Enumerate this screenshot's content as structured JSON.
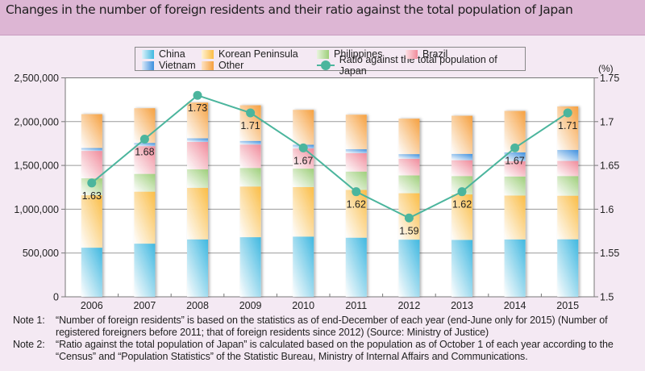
{
  "header": {
    "title": "Changes in the number of foreign residents and their ratio against the total population of Japan"
  },
  "legend": {
    "items": [
      {
        "label": "China",
        "key": "china"
      },
      {
        "label": "Vietnam",
        "key": "vietnam"
      },
      {
        "label": "Korean Peninsula",
        "key": "korea"
      },
      {
        "label": "Other",
        "key": "other"
      },
      {
        "label": "Philippines",
        "key": "philippines"
      },
      {
        "label": "Ratio against the total population of Japan",
        "key": "ratio"
      },
      {
        "label": "Brazil",
        "key": "brazil"
      }
    ]
  },
  "colors": {
    "china": "#3fb8e0",
    "korea": "#fbbd45",
    "philippines": "#9ecf7a",
    "brazil": "#f08b9b",
    "vietnam": "#3c8fde",
    "other": "#f6a03e",
    "ratio": "#4bb59d",
    "background": "#f4e9f3",
    "title_bar": "#ddb6d4"
  },
  "chart_data": {
    "type": "bar",
    "stacked": true,
    "title": "Changes in the number of foreign residents and their ratio against the total population of Japan",
    "categories": [
      "2006",
      "2007",
      "2008",
      "2009",
      "2010",
      "2011",
      "2012",
      "2013",
      "2014",
      "2015"
    ],
    "series": [
      {
        "name": "China",
        "key": "china",
        "values": [
          560741,
          606889,
          655377,
          680518,
          687156,
          674879,
          652595,
          649078,
          654777,
          656403
        ]
      },
      {
        "name": "Korean Peninsula",
        "key": "korea",
        "values": [
          598687,
          593489,
          589239,
          578495,
          565989,
          545401,
          530048,
          519740,
          501230,
          497707
        ]
      },
      {
        "name": "Philippines",
        "key": "philippines",
        "values": [
          193488,
          202592,
          210617,
          211716,
          210181,
          209376,
          202985,
          209183,
          217585,
          224048
        ]
      },
      {
        "name": "Brazil",
        "key": "brazil",
        "values": [
          312979,
          316967,
          312582,
          267456,
          230552,
          210032,
          190609,
          181317,
          175410,
          173038
        ]
      },
      {
        "name": "Vietnam",
        "key": "vietnam",
        "values": [
          32485,
          36860,
          41136,
          41000,
          41781,
          44690,
          52367,
          72256,
          99865,
          125760
        ]
      },
      {
        "name": "Other",
        "key": "other",
        "values": [
          386539,
          396172,
          408007,
          406999,
          398462,
          394236,
          405052,
          434992,
          472966,
          495936
        ]
      }
    ],
    "line_series": {
      "name": "Ratio against the total population of Japan",
      "axis": "right",
      "values": [
        1.63,
        1.68,
        1.73,
        1.71,
        1.67,
        1.62,
        1.59,
        1.62,
        1.67,
        1.71
      ],
      "labels": [
        "1.63",
        "1.68",
        "1.73",
        "1.71",
        "1.67",
        "1.62",
        "1.59",
        "1.62",
        "1.67",
        "1.71"
      ]
    },
    "y_left": {
      "label": "",
      "ylim": [
        0,
        2500000
      ],
      "ticks": [
        0,
        500000,
        1000000,
        1500000,
        2000000,
        2500000
      ],
      "tick_labels": [
        "0",
        "500,000",
        "1,000,000",
        "1,500,000",
        "2,000,000",
        "2,500,000"
      ]
    },
    "y_right": {
      "label": "(%)",
      "ylim": [
        1.5,
        1.75
      ],
      "ticks": [
        1.5,
        1.55,
        1.6,
        1.65,
        1.7,
        1.75
      ],
      "tick_labels": [
        "1.5",
        "1.55",
        "1.6",
        "1.65",
        "1.7",
        "1.75"
      ]
    },
    "grid": true,
    "legend_position": "top-center"
  },
  "notes": [
    {
      "label": "Note 1:",
      "text": "“Number of foreign residents” is based on the statistics as of end-December of each year (end-June only for 2015) (Number of registered foreigners before 2011; that of foreign residents since 2012) (Source: Ministry of Justice)"
    },
    {
      "label": "Note 2:",
      "text": "“Ratio against the total population of Japan” is calculated based on the population as of October 1 of each year according to the “Census” and “Population Statistics” of the Statistic Bureau, Ministry of Internal Affairs and Communications."
    }
  ]
}
